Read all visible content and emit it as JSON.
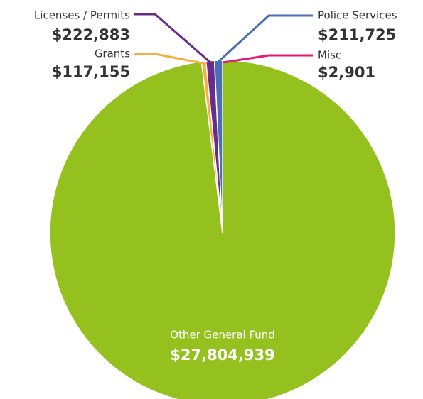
{
  "chart_data": {
    "type": "pie",
    "categories": [
      "Misc",
      "Other General Fund",
      "Grants",
      "Licenses / Permits",
      "Police Services"
    ],
    "values": [
      2901,
      27804939,
      117155,
      222883,
      211725
    ],
    "value_labels": [
      "$2,901",
      "$27,804,939",
      "$117,155",
      "$222,883",
      "$211,725"
    ],
    "colors": [
      "#e2197b",
      "#95c11f",
      "#f6b042",
      "#6a2c8a",
      "#4a6fb5"
    ]
  }
}
